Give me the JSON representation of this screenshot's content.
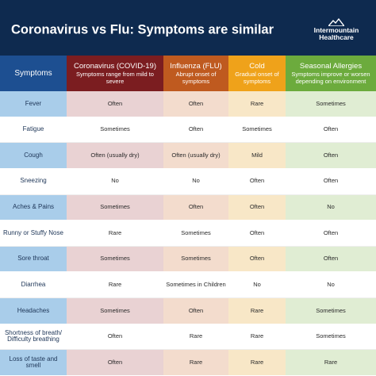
{
  "header": {
    "title": "Coronavirus vs Flu: Symptoms are similar",
    "brand_name": "Intermountain",
    "brand_sub": "Healthcare"
  },
  "columns": [
    {
      "name": "Symptoms",
      "subtitle": ""
    },
    {
      "name": "Coronavirus (COVID-19)",
      "subtitle": "Symptoms range from mild to severe"
    },
    {
      "name": "Influenza (FLU)",
      "subtitle": "Abrupt onset of symptoms"
    },
    {
      "name": "Cold",
      "subtitle": "Gradual onset of symptoms"
    },
    {
      "name": "Seasonal Allergies",
      "subtitle": "Symptoms improve or worsen depending on environment"
    }
  ],
  "rows": [
    {
      "symptom": "Fever",
      "covid": "Often",
      "flu": "Often",
      "cold": "Rare",
      "allergy": "Sometimes"
    },
    {
      "symptom": "Fatigue",
      "covid": "Sometimes",
      "flu": "Often",
      "cold": "Sometimes",
      "allergy": "Often"
    },
    {
      "symptom": "Cough",
      "covid": "Often (usually dry)",
      "flu": "Often (usually dry)",
      "cold": "Mild",
      "allergy": "Often"
    },
    {
      "symptom": "Sneezing",
      "covid": "No",
      "flu": "No",
      "cold": "Often",
      "allergy": "Often"
    },
    {
      "symptom": "Aches & Pains",
      "covid": "Sometimes",
      "flu": "Often",
      "cold": "Often",
      "allergy": "No"
    },
    {
      "symptom": "Runny or Stuffy Nose",
      "covid": "Rare",
      "flu": "Sometimes",
      "cold": "Often",
      "allergy": "Often"
    },
    {
      "symptom": "Sore throat",
      "covid": "Sometimes",
      "flu": "Sometimes",
      "cold": "Often",
      "allergy": "Often"
    },
    {
      "symptom": "Diarrhea",
      "covid": "Rare",
      "flu": "Sometimes in Children",
      "cold": "No",
      "allergy": "No"
    },
    {
      "symptom": "Headaches",
      "covid": "Sometimes",
      "flu": "Often",
      "cold": "Rare",
      "allergy": "Sometimes"
    },
    {
      "symptom": "Shortness of breath/ Difficulty breathing",
      "covid": "Often",
      "flu": "Rare",
      "cold": "Rare",
      "allergy": "Sometimes"
    },
    {
      "symptom": "Loss of taste and smell",
      "covid": "Often",
      "flu": "Rare",
      "cold": "Rare",
      "allergy": "Rare"
    }
  ],
  "colors": {
    "banner": "#0e2a4f",
    "symptoms_header": "#1d4f91",
    "covid_header": "#7b1d20",
    "flu_header": "#bf5a1f",
    "cold_header": "#efa21a",
    "allergy_header": "#6cab3d"
  },
  "icons": {
    "brand_logo": "mountain-logo-icon"
  }
}
